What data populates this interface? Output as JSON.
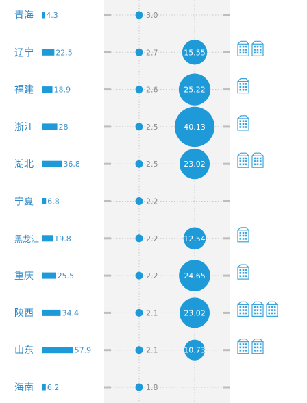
{
  "chart_data": {
    "type": "table",
    "colors": {
      "accent": "#1f9ad8",
      "label": "#2a86c6",
      "panel": "#f3f3f3",
      "dotted": "#c8c8c8",
      "tick": "#bdbdbd",
      "building": "#3aa3dc"
    },
    "rows": [
      {
        "region": "青海",
        "bar": 4.3,
        "bar_label": "4.3",
        "dot": 3.0,
        "dot_label": "3.0",
        "bubble": null,
        "bubble_label": "",
        "buildings": 0
      },
      {
        "region": "辽宁",
        "bar": 22.5,
        "bar_label": "22.5",
        "dot": 2.7,
        "dot_label": "2.7",
        "bubble": 15.55,
        "bubble_label": "15.55",
        "buildings": 2
      },
      {
        "region": "福建",
        "bar": 18.9,
        "bar_label": "18.9",
        "dot": 2.6,
        "dot_label": "2.6",
        "bubble": 25.22,
        "bubble_label": "25.22",
        "buildings": 1
      },
      {
        "region": "浙江",
        "bar": 28,
        "bar_label": "28",
        "dot": 2.5,
        "dot_label": "2.5",
        "bubble": 40.13,
        "bubble_label": "40.13",
        "buildings": 1
      },
      {
        "region": "湖北",
        "bar": 36.8,
        "bar_label": "36.8",
        "dot": 2.5,
        "dot_label": "2.5",
        "bubble": 23.02,
        "bubble_label": "23.02",
        "buildings": 2
      },
      {
        "region": "宁夏",
        "bar": 6.8,
        "bar_label": "6.8",
        "dot": 2.2,
        "dot_label": "2.2",
        "bubble": null,
        "bubble_label": "",
        "buildings": 0
      },
      {
        "region": "黑龙江",
        "bar": 19.8,
        "bar_label": "19.8",
        "dot": 2.2,
        "dot_label": "2.2",
        "bubble": 12.54,
        "bubble_label": "12.54",
        "buildings": 1
      },
      {
        "region": "重庆",
        "bar": 25.5,
        "bar_label": "25.5",
        "dot": 2.2,
        "dot_label": "2.2",
        "bubble": 24.65,
        "bubble_label": "24.65",
        "buildings": 1
      },
      {
        "region": "陕西",
        "bar": 34.4,
        "bar_label": "34.4",
        "dot": 2.1,
        "dot_label": "2.1",
        "bubble": 23.02,
        "bubble_label": "23.02",
        "buildings": 3
      },
      {
        "region": "山东",
        "bar": 57.9,
        "bar_label": "57.9",
        "dot": 2.1,
        "dot_label": "2.1",
        "bubble": 10.73,
        "bubble_label": "10.73",
        "buildings": 2
      },
      {
        "region": "海南",
        "bar": 6.2,
        "bar_label": "6.2",
        "dot": 1.8,
        "dot_label": "1.8",
        "bubble": null,
        "bubble_label": "",
        "buildings": 0
      }
    ]
  }
}
